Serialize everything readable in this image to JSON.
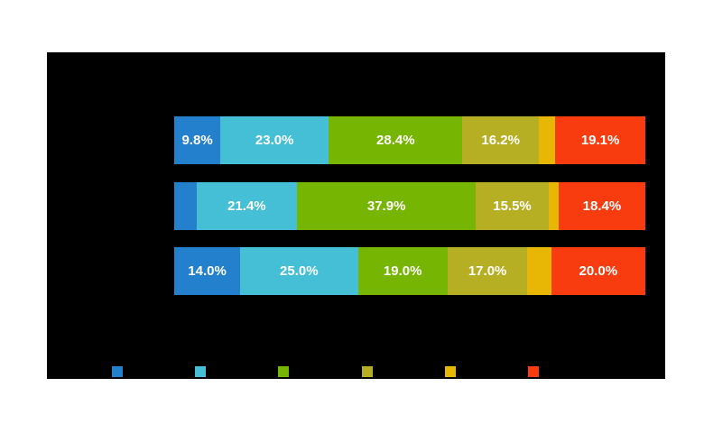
{
  "chart_data": {
    "type": "bar",
    "orientation": "horizontal",
    "stacked": true,
    "title": "",
    "xlabel": "",
    "ylabel": "",
    "grid": false,
    "plot_background": "#000000",
    "page_background": "#ffffff",
    "label_color": "#ffffff",
    "categories": [
      "",
      "",
      ""
    ],
    "note": "Category, axis, title and legend texts are not visible (rendered black-on-black); only percentage data labels and legend color swatches are visible. Unlabeled small segment values are estimated from pixel widths so each row totals 100%.",
    "series": [
      {
        "name": "blue",
        "color": "#2380cc",
        "values": [
          9.8,
          4.7,
          14.0
        ],
        "labels": [
          "9.8%",
          "",
          "14.0%"
        ]
      },
      {
        "name": "cyan",
        "color": "#45bfd5",
        "values": [
          23.0,
          21.4,
          25.0
        ],
        "labels": [
          "23.0%",
          "21.4%",
          "25.0%"
        ]
      },
      {
        "name": "green",
        "color": "#76b502",
        "values": [
          28.4,
          37.9,
          19.0
        ],
        "labels": [
          "28.4%",
          "37.9%",
          "19.0%"
        ]
      },
      {
        "name": "olive",
        "color": "#b6af23",
        "values": [
          16.2,
          15.5,
          17.0
        ],
        "labels": [
          "16.2%",
          "15.5%",
          "17.0%"
        ]
      },
      {
        "name": "gold",
        "color": "#e8b604",
        "values": [
          3.5,
          2.1,
          5.0
        ],
        "labels": [
          "",
          "",
          ""
        ]
      },
      {
        "name": "orange",
        "color": "#f93b10",
        "values": [
          19.1,
          18.4,
          20.0
        ],
        "labels": [
          "19.1%",
          "18.4%",
          "20.0%"
        ]
      }
    ],
    "legend": {
      "position": "bottom",
      "swatch_colors": [
        "#2380cc",
        "#45bfd5",
        "#76b502",
        "#b6af23",
        "#e8b604",
        "#f93b10"
      ]
    },
    "xlim": [
      0,
      100
    ]
  }
}
